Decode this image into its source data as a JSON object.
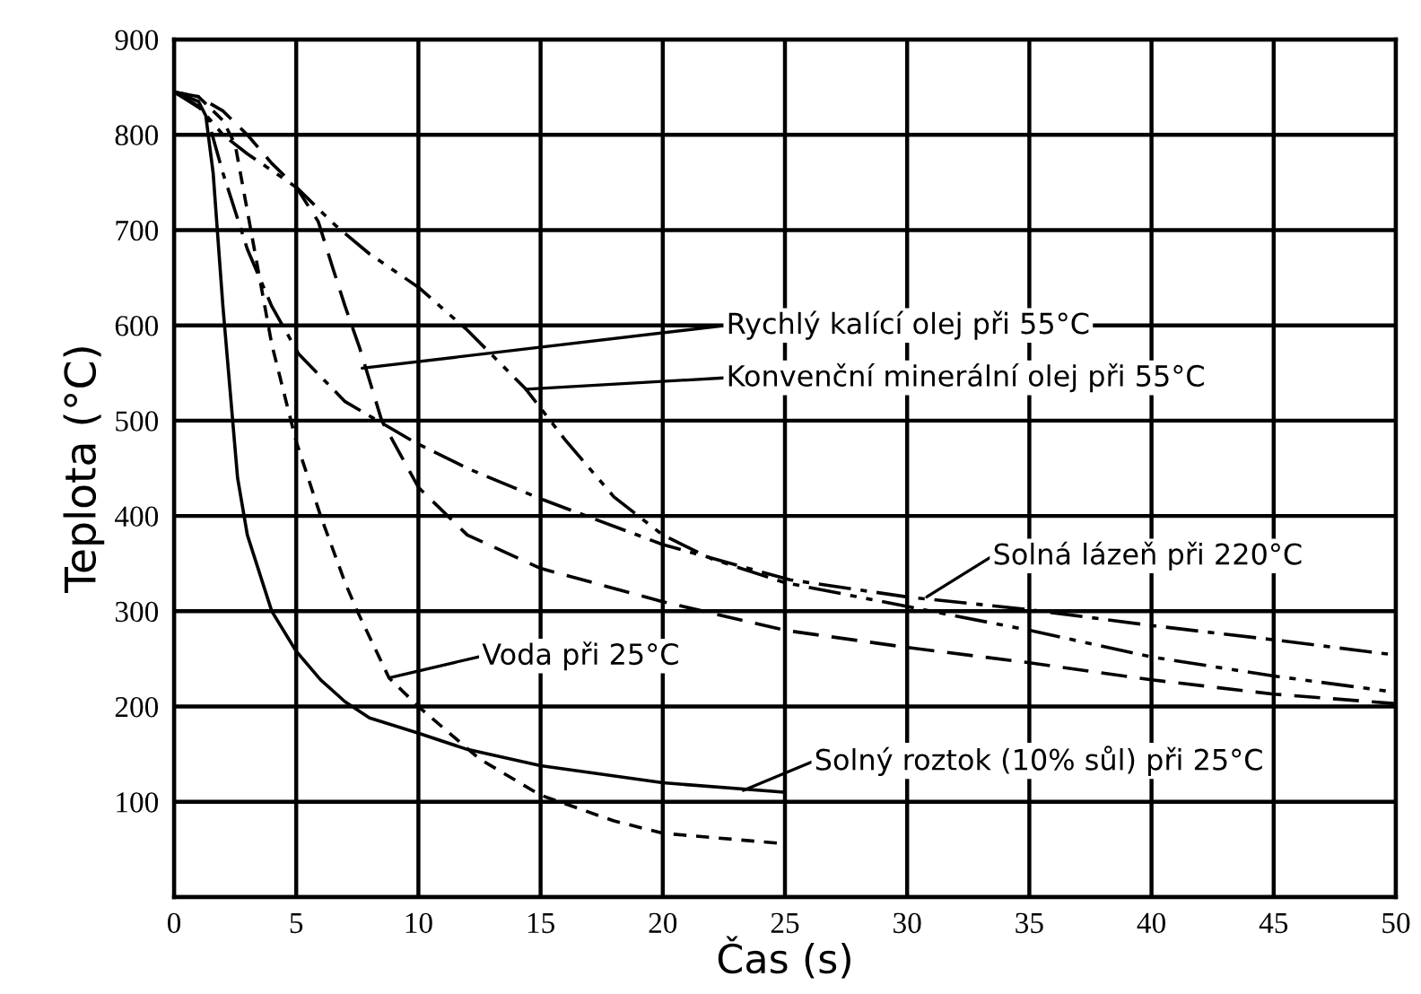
{
  "chart_data": {
    "type": "line",
    "xlabel": "Čas (s)",
    "ylabel": "Teplota (°C)",
    "xlim": [
      0,
      50
    ],
    "xticks": [
      0,
      5,
      10,
      15,
      20,
      25,
      30,
      35,
      40,
      45,
      50
    ],
    "ylim": [
      0,
      900
    ],
    "yticks": [
      {
        "value": 0,
        "label": null
      },
      100,
      200,
      300,
      400,
      500,
      600,
      700,
      800,
      900
    ],
    "grid": true,
    "legend": false,
    "marker": "none",
    "series": [
      {
        "color": "#000000",
        "line_style": "solid",
        "x": [
          0,
          1,
          1.3,
          1.6,
          2,
          2.6,
          3,
          4,
          5,
          6,
          7,
          8,
          10,
          12,
          15,
          20,
          25
        ],
        "values": [
          845,
          835,
          820,
          760,
          620,
          440,
          380,
          300,
          258,
          228,
          205,
          188,
          172,
          155,
          138,
          120,
          110
        ]
      },
      {
        "color": "#000000",
        "line_style": "dashed",
        "x": [
          0,
          1,
          2,
          2.5,
          3,
          3.5,
          4,
          5,
          6,
          7,
          7.5,
          8.8,
          10,
          12.5,
          15,
          18,
          20,
          25
        ],
        "values": [
          845,
          840,
          815,
          790,
          720,
          650,
          580,
          478,
          400,
          330,
          300,
          230,
          200,
          145,
          107,
          80,
          67,
          56
        ]
      },
      {
        "color": "#000000",
        "line_style": "longdash",
        "x": [
          0,
          1,
          2,
          3,
          4,
          5,
          5.9,
          6.5,
          7,
          7.6,
          8.5,
          10,
          12,
          15,
          20,
          25,
          30,
          35,
          40,
          45,
          50
        ],
        "values": [
          845,
          840,
          825,
          800,
          770,
          745,
          709,
          660,
          620,
          576,
          500,
          430,
          380,
          345,
          310,
          280,
          262,
          246,
          228,
          213,
          203
        ]
      },
      {
        "color": "#000000",
        "line_style": "dashdot",
        "x": [
          0,
          1.3,
          2,
          3,
          4,
          5.1,
          7,
          9.8,
          12,
          15.1,
          20,
          23.5,
          25.2,
          30,
          34.9,
          40,
          45,
          50
        ],
        "values": [
          845,
          824,
          760,
          680,
          620,
          570,
          520,
          478,
          450,
          417,
          370,
          345,
          333,
          315,
          302,
          285,
          270,
          254
        ]
      },
      {
        "color": "#000000",
        "line_style": "dashdotdot",
        "x": [
          0,
          1,
          2,
          3,
          5,
          6.6,
          8,
          10,
          12,
          14.4,
          16,
          18,
          20,
          22,
          25,
          30,
          35,
          40,
          45,
          50
        ],
        "values": [
          845,
          830,
          800,
          780,
          745,
          705,
          675,
          640,
          595,
          533,
          480,
          420,
          380,
          355,
          330,
          305,
          280,
          252,
          232,
          215
        ]
      }
    ],
    "annotations": [
      {
        "text": "Rychlý kalící olej při 55°C",
        "x": 7.7,
        "y": 555
      },
      {
        "text": "Konvenční minerální olej při 55°C",
        "x": 14.4,
        "y": 533
      },
      {
        "text": "Solná lázeň při 220°C",
        "x": 30.8,
        "y": 315
      },
      {
        "text": "Voda při 25°C",
        "x": 8.8,
        "y": 230
      },
      {
        "text": "Solný roztok (10% sůl) při 25°C",
        "x": 23.3,
        "y": 112
      }
    ]
  }
}
